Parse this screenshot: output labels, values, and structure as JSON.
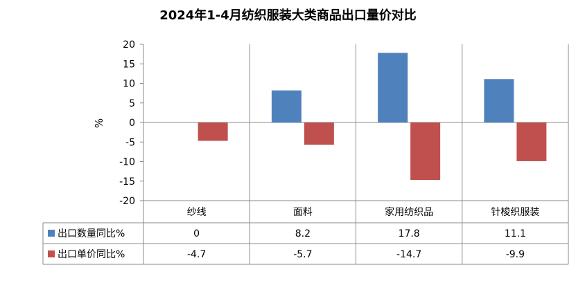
{
  "chart_data": {
    "type": "bar",
    "title": "2024年1-4月纺织服装大类商品出口量价对比",
    "ylabel": "%",
    "xlabel": "",
    "ylim": [
      -20,
      20
    ],
    "yticks": [
      20,
      15,
      10,
      5,
      0,
      -5,
      -10,
      -15,
      -20
    ],
    "categories": [
      "纱线",
      "面料",
      "家用纺织品",
      "针梭织服装"
    ],
    "series": [
      {
        "name": "出口数量同比%",
        "values": [
          0,
          8.2,
          17.8,
          11.1
        ],
        "labels": [
          "0",
          "8.2",
          "17.8",
          "11.1"
        ],
        "color": "#4F81BD"
      },
      {
        "name": "出口单价同比%",
        "values": [
          -4.7,
          -5.7,
          -14.7,
          -9.9
        ],
        "labels": [
          "-4.7",
          "-5.7",
          "-14.7",
          "-9.9"
        ],
        "color": "#C0504D"
      }
    ],
    "grid": false,
    "legend": "data-table-left"
  }
}
